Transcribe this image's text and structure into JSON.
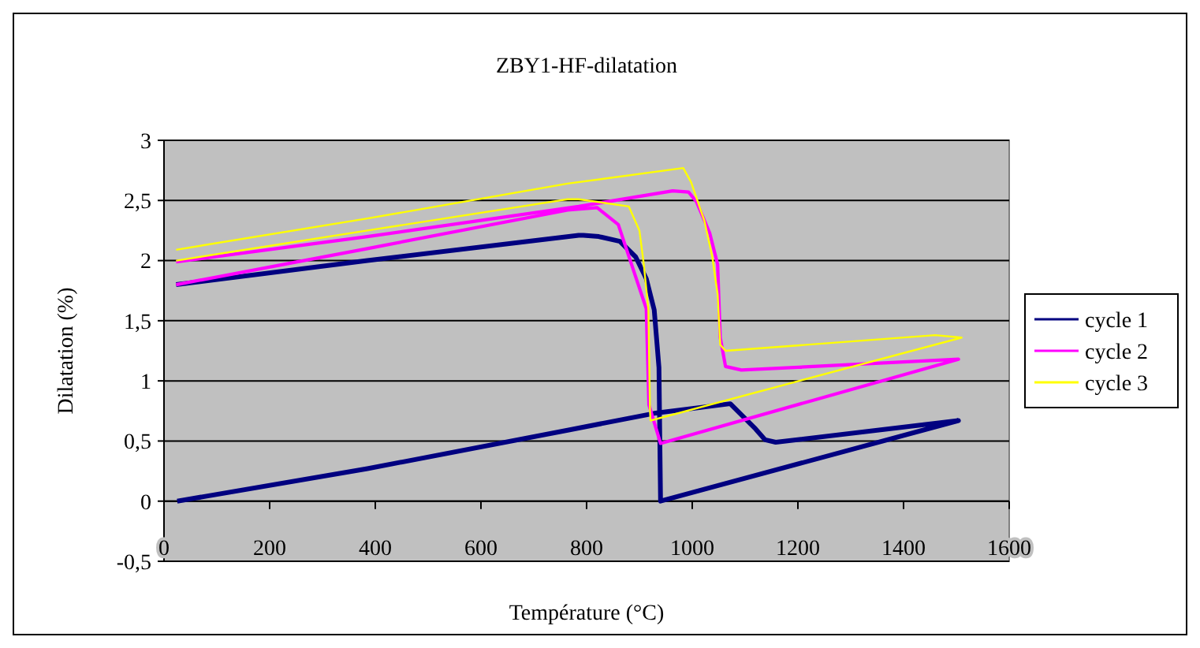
{
  "chart_data": {
    "type": "line",
    "title": "ZBY1-HF-dilatation",
    "xlabel": "Température (°C)",
    "ylabel": "Dilatation (%)",
    "xlim": [
      0,
      1600
    ],
    "xticks": [
      0,
      200,
      400,
      600,
      800,
      1000,
      1200,
      1400,
      1600
    ],
    "ylim": [
      -0.5,
      3
    ],
    "yticks": [
      {
        "value": -0.5,
        "label": "-0,5"
      },
      0,
      {
        "value": 0.5,
        "label": "0,5"
      },
      1,
      {
        "value": 1.5,
        "label": "1,5"
      },
      2,
      {
        "value": 2.5,
        "label": "2,5"
      },
      3
    ],
    "grid": "y",
    "legend": "right",
    "line_style": "solid",
    "marker": "none",
    "series": [
      {
        "name": "cycle 1",
        "color": "#000080",
        "x": [
          25,
          385,
          764,
          928,
          1072,
          1120,
          1138,
          1158,
          1504,
          940,
          937,
          928,
          913,
          893,
          863,
          823,
          794,
          785,
          385,
          23
        ],
        "values": [
          0,
          0.27,
          0.59,
          0.73,
          0.81,
          0.6,
          0.51,
          0.49,
          0.67,
          0,
          1.11,
          1.59,
          1.85,
          2.03,
          2.16,
          2.2,
          2.21,
          2.21,
          2.0,
          1.8
        ]
      },
      {
        "name": "cycle 2",
        "color": "#ff00ff",
        "x": [
          23,
          385,
          764,
          820,
          860,
          913,
          918,
          940,
          1504,
          1093,
          1063,
          1053,
          1048,
          1033,
          1008,
          993,
          963,
          785,
          385,
          23
        ],
        "values": [
          1.8,
          2.1,
          2.42,
          2.44,
          2.3,
          1.6,
          0.8,
          0.48,
          1.18,
          1.09,
          1.12,
          1.36,
          1.97,
          2.23,
          2.49,
          2.57,
          2.58,
          2.45,
          2.2,
          1.99
        ]
      },
      {
        "name": "cycle 3",
        "color": "#ffff00",
        "x": [
          23,
          385,
          764,
          785,
          880,
          900,
          908,
          917,
          920,
          921,
          1510,
          1460,
          1063,
          1053,
          1048,
          1038,
          1023,
          998,
          983,
          764,
          385,
          23
        ],
        "values": [
          2.0,
          2.25,
          2.51,
          2.51,
          2.45,
          2.25,
          1.98,
          1.59,
          0.75,
          0.67,
          1.36,
          1.38,
          1.25,
          1.3,
          1.72,
          2.03,
          2.33,
          2.65,
          2.77,
          2.64,
          2.35,
          2.09
        ]
      }
    ]
  }
}
